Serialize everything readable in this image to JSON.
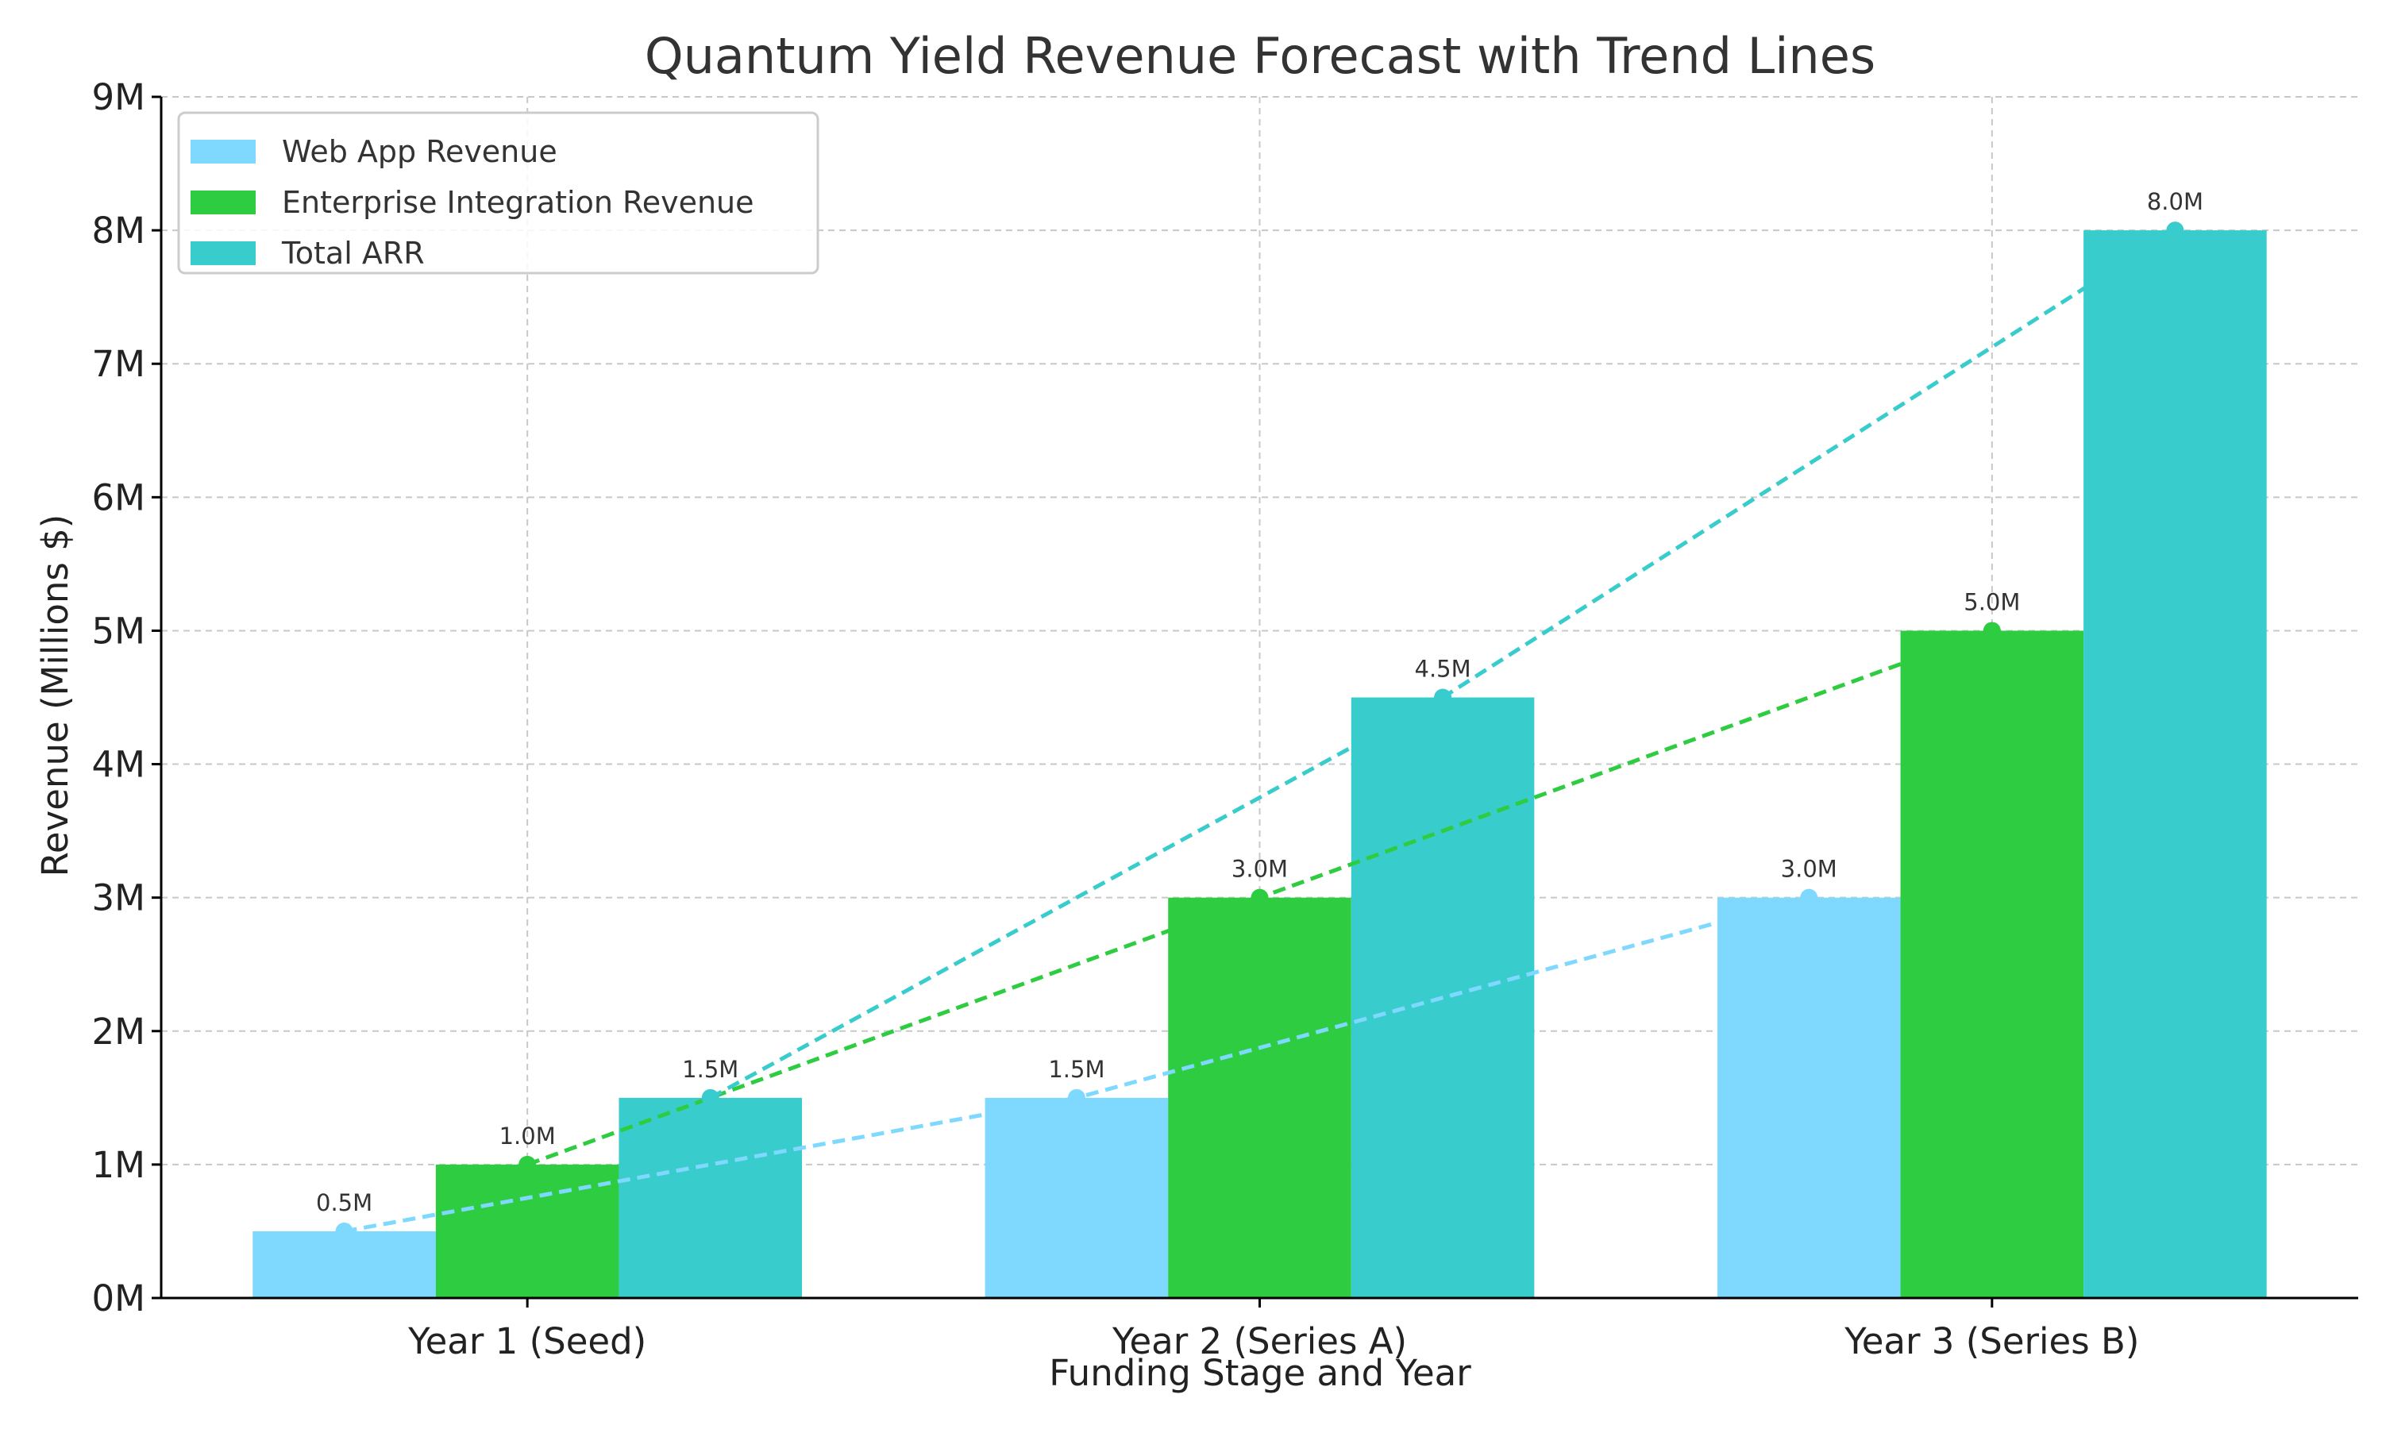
{
  "chart_data": {
    "type": "bar",
    "title": "Quantum Yield Revenue Forecast with Trend Lines",
    "xlabel": "Funding Stage and Year",
    "ylabel": "Revenue (Millions $)",
    "categories": [
      "Year 1 (Seed)",
      "Year 2 (Series A)",
      "Year 3 (Series B)"
    ],
    "ylim": [
      0,
      9
    ],
    "yticks": [
      0,
      1,
      2,
      3,
      4,
      5,
      6,
      7,
      8,
      9
    ],
    "ytick_labels": [
      "0M",
      "1M",
      "2M",
      "3M",
      "4M",
      "5M",
      "6M",
      "7M",
      "8M",
      "9M"
    ],
    "grid": true,
    "legend_position": "top-left",
    "trend_lines": "dashed",
    "series": [
      {
        "name": "Web App Revenue",
        "color": "#7fd8fe",
        "values": [
          0.5,
          1.5,
          3.0
        ],
        "labels": [
          "0.5M",
          "1.5M",
          "3.0M"
        ]
      },
      {
        "name": "Enterprise Integration Revenue",
        "color": "#2ecc40",
        "values": [
          1.0,
          3.0,
          5.0
        ],
        "labels": [
          "1.0M",
          "3.0M",
          "5.0M"
        ]
      },
      {
        "name": "Total ARR",
        "color": "#39cccc",
        "values": [
          1.5,
          4.5,
          8.0
        ],
        "labels": [
          "1.5M",
          "4.5M",
          "8.0M"
        ]
      }
    ]
  }
}
